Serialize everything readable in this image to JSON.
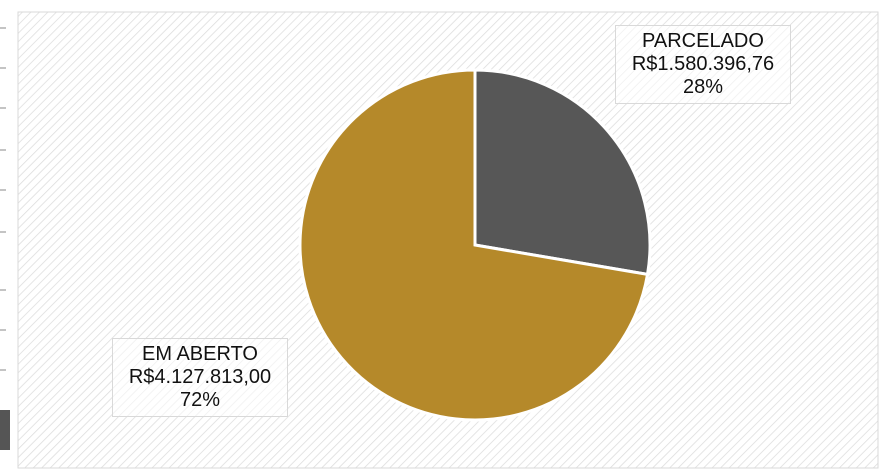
{
  "chart_data": {
    "type": "pie",
    "categories": [
      "PARCELADO",
      "EM ABERTO"
    ],
    "values": [
      1580396.76,
      4127813.0
    ],
    "value_labels": [
      "R$1.580.396,76",
      "R$4.127.813,00"
    ],
    "percent_labels": [
      "28%",
      "72%"
    ],
    "colors": [
      "#575757",
      "#b5892a"
    ]
  }
}
